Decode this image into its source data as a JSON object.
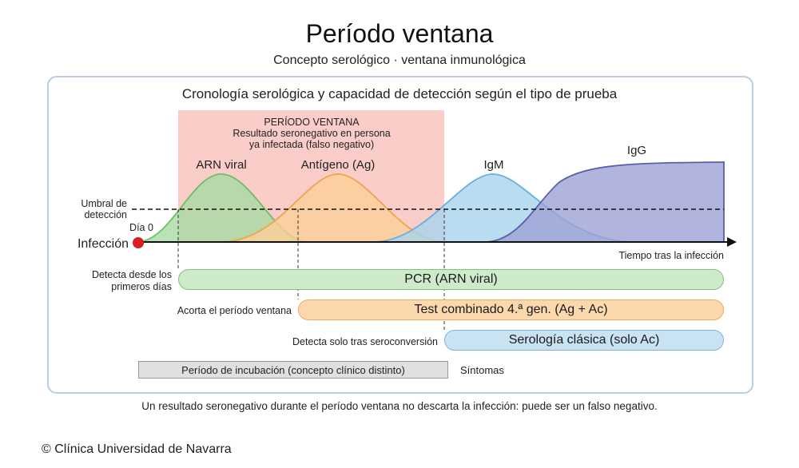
{
  "header": {
    "title": "Período ventana",
    "subtitle": "Concepto serológico · ventana inmunológica"
  },
  "panel": {
    "title": "Cronología serológica y capacidad de detección según el tipo de prueba"
  },
  "window_box": {
    "line1": "PERÍODO VENTANA",
    "line2": "Resultado seronegativo en persona",
    "line3": "ya infectada (falso negativo)",
    "color": "#fbc8c3"
  },
  "curves": [
    {
      "name": "ARN viral",
      "fill": "#a8dba5",
      "stroke": "#6bbf68"
    },
    {
      "name": "Antígeno (Ag)",
      "fill": "#fbcf98",
      "stroke": "#f2a24a"
    },
    {
      "name": "IgM",
      "fill": "#a9d3ee",
      "stroke": "#64b0df"
    },
    {
      "name": "IgG",
      "fill": "#9ea3d6",
      "stroke": "#5a5fad"
    }
  ],
  "axis": {
    "threshold_label_1": "Umbral de",
    "threshold_label_2": "detección",
    "day0": "Día 0",
    "infection": "Infección",
    "x_label": "Tiempo tras la infección"
  },
  "tests": {
    "pcr": {
      "label": "PCR (ARN viral)",
      "note_1": "Detecta desde los",
      "note_2": "primeros días"
    },
    "combo": {
      "label": "Test combinado 4.ª gen. (Ag + Ac)",
      "note": "Acorta el período ventana"
    },
    "sero": {
      "label": "Serología clásica (solo Ac)",
      "note": "Detecta solo tras seroconversión"
    }
  },
  "incubation": {
    "label": "Período de incubación (concepto clínico distinto)",
    "symptoms": "Síntomas"
  },
  "footnote": "Un resultado seronegativo durante el período ventana no descarta la infección: puede ser un falso negativo.",
  "copyright": "© Clínica Universidad de Navarra"
}
